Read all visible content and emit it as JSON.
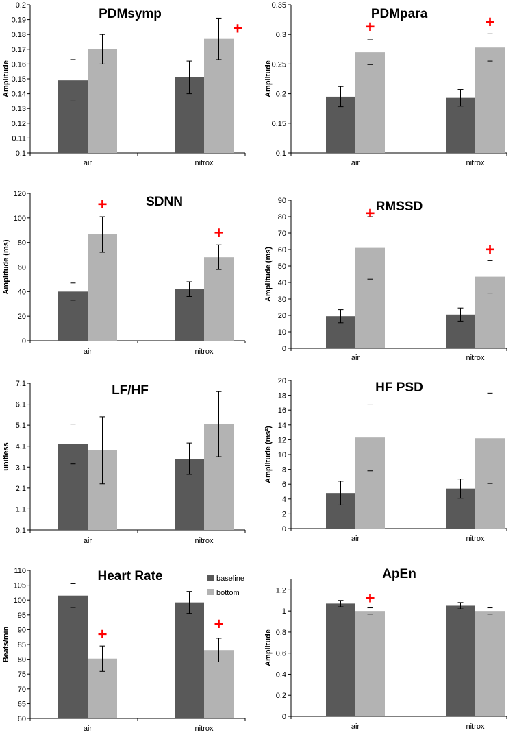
{
  "colors": {
    "baseline": "#595959",
    "bottom": "#b3b3b3",
    "marker": "#ff0000",
    "axis": "#000000"
  },
  "legend": {
    "baseline": "baseline",
    "bottom": "bottom"
  },
  "chart_data": [
    {
      "id": "pdmsymp",
      "type": "bar",
      "title": "PDMsymp",
      "ylabel": "Amplitude",
      "categories": [
        "air",
        "nitrox"
      ],
      "ylim": [
        0.1,
        0.2
      ],
      "ticks": [
        0.1,
        0.11,
        0.12,
        0.13,
        0.14,
        0.15,
        0.16,
        0.17,
        0.18,
        0.19,
        0.2
      ],
      "tick_labels": [
        "0.1",
        "0.11",
        "0.12",
        "0.13",
        "0.14",
        "0.15",
        "0.16",
        "0.17",
        "0.18",
        "0.19",
        "0.2"
      ],
      "series": [
        {
          "name": "baseline",
          "values": [
            0.149,
            0.151
          ],
          "err": [
            0.014,
            0.011
          ]
        },
        {
          "name": "bottom",
          "values": [
            0.17,
            0.177
          ],
          "err": [
            0.01,
            0.014
          ]
        }
      ],
      "markers": [
        {
          "label": "+",
          "category": "nitrox",
          "series": "bottom",
          "y": 0.184,
          "beside": true
        }
      ]
    },
    {
      "id": "pdmpara",
      "type": "bar",
      "title": "PDMpara",
      "ylabel": "Amplitude",
      "categories": [
        "air",
        "nitrox"
      ],
      "ylim": [
        0.1,
        0.35
      ],
      "ticks": [
        0.1,
        0.15,
        0.2,
        0.25,
        0.3,
        0.35
      ],
      "tick_labels": [
        "0.1",
        "0.15",
        "0.2",
        "0.25",
        "0.3",
        "0.35"
      ],
      "series": [
        {
          "name": "baseline",
          "values": [
            0.195,
            0.193
          ],
          "err": [
            0.017,
            0.014
          ]
        },
        {
          "name": "bottom",
          "values": [
            0.27,
            0.278
          ],
          "err": [
            0.021,
            0.023
          ]
        }
      ],
      "markers": [
        {
          "label": "+",
          "category": "air",
          "series": "bottom",
          "y": 0.313,
          "beside": false
        },
        {
          "label": "+",
          "category": "nitrox",
          "series": "bottom",
          "y": 0.321,
          "beside": false
        }
      ]
    },
    {
      "id": "sdnn",
      "type": "bar",
      "title": "SDNN",
      "ylabel": "Amplitude (ms)",
      "categories": [
        "air",
        "nitrox"
      ],
      "ylim": [
        0,
        120
      ],
      "ticks": [
        0,
        20,
        40,
        60,
        80,
        100,
        120
      ],
      "tick_labels": [
        "0",
        "20",
        "40",
        "60",
        "80",
        "100",
        "120"
      ],
      "series": [
        {
          "name": "baseline",
          "values": [
            40,
            42
          ],
          "err": [
            7,
            6
          ]
        },
        {
          "name": "bottom",
          "values": [
            86.5,
            68
          ],
          "err": [
            14.5,
            10
          ]
        }
      ],
      "markers": [
        {
          "label": "+",
          "category": "air",
          "series": "bottom",
          "y": 111,
          "beside": false
        },
        {
          "label": "+",
          "category": "nitrox",
          "series": "bottom",
          "y": 88,
          "beside": false
        }
      ]
    },
    {
      "id": "rmssd",
      "type": "bar",
      "title": "RMSSD",
      "ylabel": "Amplitude (ms)",
      "categories": [
        "air",
        "nitrox"
      ],
      "ylim": [
        0,
        90
      ],
      "ticks": [
        0,
        10,
        20,
        30,
        40,
        50,
        60,
        70,
        80,
        90
      ],
      "tick_labels": [
        "0",
        "10",
        "20",
        "30",
        "40",
        "50",
        "60",
        "70",
        "80",
        "90"
      ],
      "series": [
        {
          "name": "baseline",
          "values": [
            19.5,
            20.5
          ],
          "err": [
            4,
            4
          ]
        },
        {
          "name": "bottom",
          "values": [
            61,
            43.5
          ],
          "err": [
            19,
            10
          ]
        }
      ],
      "markers": [
        {
          "label": "+",
          "category": "air",
          "series": "bottom",
          "y": 82,
          "beside": false
        },
        {
          "label": "+",
          "category": "nitrox",
          "series": "bottom",
          "y": 60,
          "beside": false
        }
      ]
    },
    {
      "id": "lfhf",
      "type": "bar",
      "title": "LF/HF",
      "ylabel": "unitless",
      "categories": [
        "air",
        "nitrox"
      ],
      "ylim": [
        0.1,
        7.1
      ],
      "ticks": [
        0.1,
        1.1,
        2.1,
        3.1,
        4.1,
        5.1,
        6.1,
        7.1
      ],
      "tick_labels": [
        "0.1",
        "1.1",
        "2.1",
        "3.1",
        "4.1",
        "5.1",
        "6.1",
        "7.1"
      ],
      "series": [
        {
          "name": "baseline",
          "values": [
            4.2,
            3.5
          ],
          "err": [
            0.95,
            0.75
          ]
        },
        {
          "name": "bottom",
          "values": [
            3.9,
            5.15
          ],
          "err": [
            1.6,
            1.55
          ]
        }
      ],
      "markers": []
    },
    {
      "id": "hfpsd",
      "type": "bar",
      "title": "HF PSD",
      "ylabel": "Amplitude (ms²)",
      "categories": [
        "air",
        "nitrox"
      ],
      "ylim": [
        0,
        20
      ],
      "ticks": [
        0,
        2,
        4,
        6,
        8,
        10,
        12,
        14,
        16,
        18,
        20
      ],
      "tick_labels": [
        "0",
        "2",
        "4",
        "6",
        "8",
        "10",
        "12",
        "14",
        "16",
        "18",
        "20"
      ],
      "series": [
        {
          "name": "baseline",
          "values": [
            4.8,
            5.4
          ],
          "err": [
            1.6,
            1.3
          ]
        },
        {
          "name": "bottom",
          "values": [
            12.3,
            12.2
          ],
          "err": [
            4.5,
            6.1
          ]
        }
      ],
      "markers": []
    },
    {
      "id": "heartrate",
      "type": "bar",
      "title": "Heart Rate",
      "ylabel": "Beats/min",
      "categories": [
        "air",
        "nitrox"
      ],
      "ylim": [
        60,
        110
      ],
      "ticks": [
        60,
        65,
        70,
        75,
        80,
        85,
        90,
        95,
        100,
        105,
        110
      ],
      "tick_labels": [
        "60",
        "65",
        "70",
        "75",
        "80",
        "85",
        "90",
        "95",
        "100",
        "105",
        "110"
      ],
      "legend": true,
      "series": [
        {
          "name": "baseline",
          "values": [
            101.5,
            99.2
          ],
          "err": [
            4,
            3.7
          ]
        },
        {
          "name": "bottom",
          "values": [
            80.2,
            83.1
          ],
          "err": [
            4.3,
            4
          ]
        }
      ],
      "markers": [
        {
          "label": "+",
          "category": "air",
          "series": "bottom",
          "y": 88.5,
          "beside": false
        },
        {
          "label": "+",
          "category": "nitrox",
          "series": "bottom",
          "y": 92,
          "beside": false
        }
      ]
    },
    {
      "id": "apen",
      "type": "bar",
      "title": "ApEn",
      "ylabel": "Amplitude",
      "categories": [
        "air",
        "nitrox"
      ],
      "ylim": [
        0,
        1.3
      ],
      "ticks": [
        0,
        0.2,
        0.4,
        0.6,
        0.8,
        1,
        1.2
      ],
      "tick_labels": [
        "0",
        "0.2",
        "0.4",
        "0.6",
        "0.8",
        "1",
        "1.2"
      ],
      "series": [
        {
          "name": "baseline",
          "values": [
            1.07,
            1.05
          ],
          "err": [
            0.03,
            0.03
          ]
        },
        {
          "name": "bottom",
          "values": [
            1,
            1
          ],
          "err": [
            0.03,
            0.03
          ]
        }
      ],
      "markers": [
        {
          "label": "+",
          "category": "air",
          "series": "bottom",
          "y": 1.12,
          "beside": false
        }
      ]
    }
  ]
}
